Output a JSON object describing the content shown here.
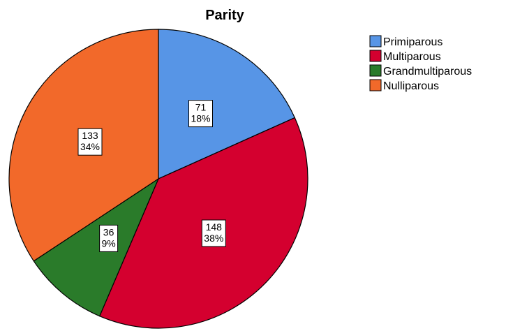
{
  "chart_data": {
    "type": "pie",
    "title": "Parity",
    "start_angle_deg": 0,
    "direction": "clockwise",
    "slices": [
      {
        "name": "Primiparous",
        "value": 71,
        "percent": "18%",
        "color": "#5795e6"
      },
      {
        "name": "Multiparous",
        "value": 148,
        "percent": "38%",
        "color": "#d4002f"
      },
      {
        "name": "Grandmultiparous",
        "value": 36,
        "percent": "9%",
        "color": "#2a7b2a"
      },
      {
        "name": "Nulliparous",
        "value": 133,
        "percent": "34%",
        "color": "#f2692a"
      }
    ],
    "legend": {
      "placement": "top-right",
      "entries": [
        "Primiparous",
        "Multiparous",
        "Grandmultiparous",
        "Nulliparous"
      ]
    },
    "data_labels": [
      "value",
      "percent"
    ]
  }
}
